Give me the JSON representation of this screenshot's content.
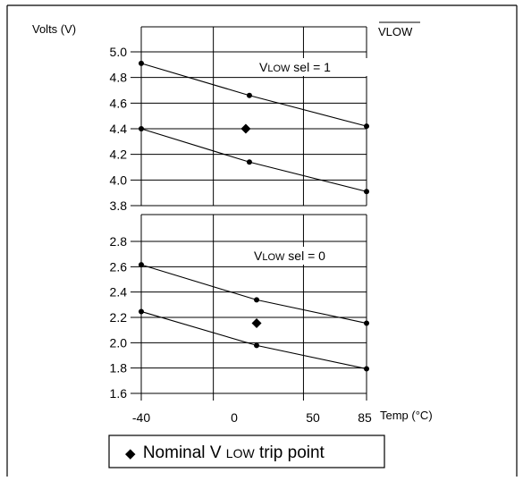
{
  "chart_data": {
    "type": "line",
    "x_axis": {
      "label": "Temp (°C)",
      "ticks": [
        -40,
        0,
        50,
        85
      ],
      "tick_labels": [
        "-40",
        "0",
        "50",
        "85"
      ],
      "range": [
        -40,
        85
      ]
    },
    "y_label": "Volts (V)",
    "corner_label": "VLOW",
    "legend": {
      "marker": "◆",
      "prefix": "Nominal ",
      "subscript": "LOW",
      "suffix": " trip point"
    },
    "panels": [
      {
        "annotation": {
          "prefix": "V",
          "smallcaps": "LOW",
          "suffix": " sel = 1"
        },
        "ylim": [
          3.8,
          5.0
        ],
        "y_ticks": [
          "5.0",
          "4.8",
          "4.6",
          "4.4",
          "4.2",
          "4.0",
          "3.8"
        ],
        "series": [
          {
            "x": [
              -40,
              20,
              85
            ],
            "y": [
              4.91,
              4.66,
              4.42
            ]
          },
          {
            "x": [
              -40,
              20,
              85
            ],
            "y": [
              4.4,
              4.14,
              3.91
            ]
          }
        ],
        "nominal": {
          "x": 18,
          "y": 4.4
        }
      },
      {
        "annotation": {
          "prefix": "V",
          "smallcaps": "LOW",
          "suffix": " sel = 0"
        },
        "ylim": [
          1.6,
          2.9
        ],
        "y_ticks": [
          "2.8",
          "2.6",
          "2.4",
          "2.2",
          "2.0",
          "1.8",
          "1.6"
        ],
        "series": [
          {
            "x": [
              -40,
              24,
              85
            ],
            "y": [
              2.7,
              2.4,
              2.2
            ]
          },
          {
            "x": [
              -40,
              24,
              85
            ],
            "y": [
              2.3,
              2.01,
              1.81
            ]
          }
        ],
        "nominal": {
          "x": 24,
          "y": 2.2
        }
      }
    ],
    "grid": true
  }
}
